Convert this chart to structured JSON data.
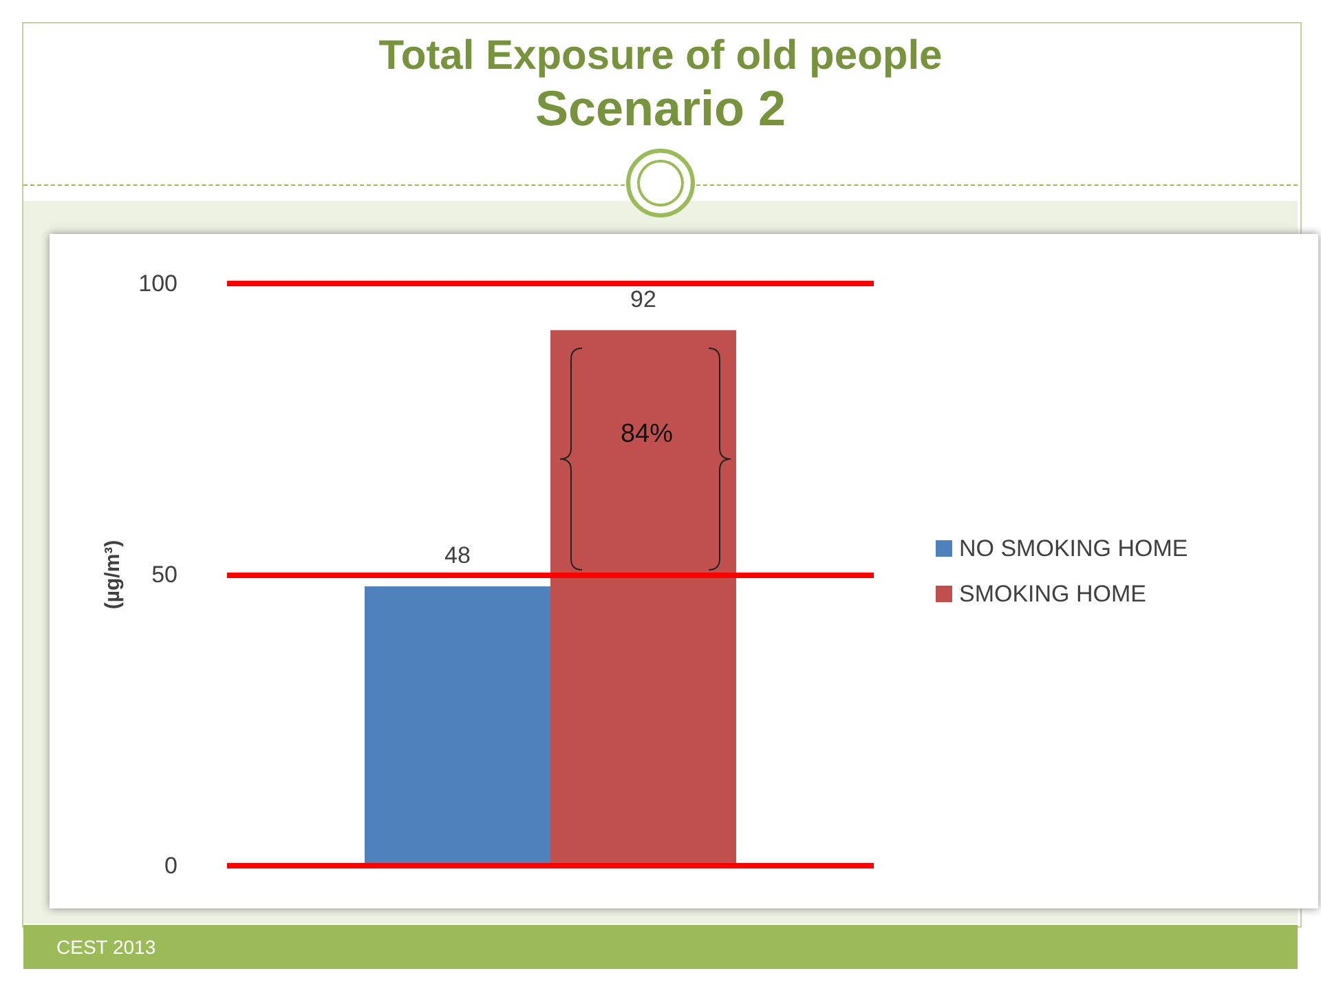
{
  "chart_data": {
    "type": "bar",
    "title": "Total Exposure of old people",
    "subtitle": "Scenario 2",
    "ylabel": "(µg/m³)",
    "categories": [
      null
    ],
    "series": [
      {
        "name": "NO SMOKING HOME",
        "color": "#4f81bd",
        "values": [
          48
        ]
      },
      {
        "name": "SMOKING HOME",
        "color": "#c0504d",
        "values": [
          92
        ]
      }
    ],
    "ylim": [
      0,
      100
    ],
    "yticks": [
      0,
      50,
      100
    ],
    "legend": "right",
    "data_labels": true,
    "ref_lines": [
      {
        "axis": "y",
        "value": 100,
        "color": "#ff0000"
      },
      {
        "axis": "y",
        "value": 50,
        "color": "#ff0000"
      },
      {
        "axis": "y",
        "value": 0,
        "color": "#ff0000"
      }
    ],
    "annotations": [
      "84%",
      "CEST 2013"
    ]
  }
}
